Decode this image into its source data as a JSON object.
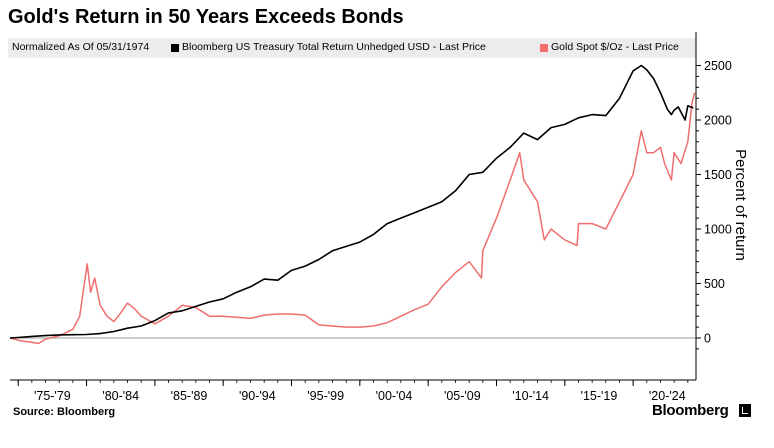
{
  "chart_data": {
    "type": "line",
    "title": "Gold's Return in 50 Years Exceeds Bonds",
    "subtitle": "Normalized As Of 05/31/1974",
    "ylabel": "Percent of return",
    "ylim": [
      -130,
      2560
    ],
    "yticks": [
      0,
      500,
      1000,
      1500,
      2000,
      2500
    ],
    "xlim": [
      1974.4,
      2024.6
    ],
    "x_tick_labels": [
      "'75-'79",
      "'80-'84",
      "'85-'89",
      "'90-'94",
      "'95-'99",
      "'00-'04",
      "'05-'09",
      "'10-'14",
      "'15-'19",
      "'20-'24"
    ],
    "legend_placement": "top",
    "grid": false,
    "source": "Source: Bloomberg",
    "brand": "Bloomberg",
    "series": [
      {
        "name": "Bloomberg US Treasury Total Return Unhedged USD - Last Price",
        "color": "#000000",
        "x": [
          1974.4,
          1975,
          1976,
          1977,
          1978,
          1979,
          1980,
          1981,
          1982,
          1983,
          1984,
          1985,
          1986,
          1987,
          1988,
          1989,
          1990,
          1991,
          1992,
          1993,
          1994,
          1995,
          1996,
          1997,
          1998,
          1999,
          2000,
          2001,
          2002,
          2003,
          2004,
          2005,
          2006,
          2007,
          2008,
          2009,
          2010,
          2011,
          2012,
          2013,
          2014,
          2015,
          2016,
          2017,
          2018,
          2019,
          2020,
          2020.6,
          2021,
          2021.5,
          2022,
          2022.5,
          2022.8,
          2023,
          2023.3,
          2023.8,
          2024,
          2024.4
        ],
        "y": [
          0,
          5,
          15,
          22,
          28,
          30,
          32,
          40,
          60,
          90,
          110,
          160,
          230,
          250,
          290,
          330,
          360,
          420,
          470,
          540,
          530,
          620,
          660,
          720,
          800,
          840,
          880,
          950,
          1050,
          1100,
          1150,
          1200,
          1250,
          1350,
          1500,
          1520,
          1650,
          1750,
          1880,
          1820,
          1930,
          1960,
          2020,
          2050,
          2040,
          2200,
          2450,
          2500,
          2460,
          2380,
          2250,
          2100,
          2050,
          2090,
          2120,
          2000,
          2130,
          2110
        ]
      },
      {
        "name": "Gold Spot $/Oz - Last Price",
        "color": "#f06e6e",
        "x": [
          1974.4,
          1975,
          1976,
          1976.5,
          1977,
          1978,
          1979,
          1979.5,
          1980.05,
          1980.3,
          1980.6,
          1981,
          1981.5,
          1982,
          1982.5,
          1983,
          1983.5,
          1984,
          1985,
          1986,
          1987,
          1988,
          1989,
          1990,
          1991,
          1992,
          1993,
          1994,
          1995,
          1996,
          1997,
          1998,
          1999,
          2000,
          2001,
          2002,
          2003,
          2004,
          2005,
          2006,
          2007,
          2008,
          2008.9,
          2009,
          2010,
          2011,
          2011.7,
          2012,
          2013,
          2013.5,
          2014,
          2015,
          2015.9,
          2016,
          2017,
          2018,
          2019,
          2020,
          2020.6,
          2021,
          2021.5,
          2022,
          2022.3,
          2022.8,
          2023,
          2023.5,
          2024,
          2024.3,
          2024.5
        ],
        "y": [
          0,
          -20,
          -40,
          -50,
          -10,
          20,
          80,
          200,
          680,
          420,
          550,
          300,
          200,
          150,
          230,
          320,
          270,
          200,
          130,
          200,
          300,
          280,
          200,
          200,
          190,
          180,
          210,
          220,
          220,
          210,
          120,
          110,
          100,
          100,
          110,
          140,
          200,
          260,
          310,
          470,
          600,
          700,
          550,
          800,
          1100,
          1450,
          1700,
          1450,
          1250,
          900,
          1000,
          900,
          850,
          1050,
          1050,
          1000,
          1250,
          1500,
          1900,
          1700,
          1700,
          1750,
          1600,
          1450,
          1700,
          1600,
          1800,
          2150,
          2250
        ]
      }
    ]
  }
}
